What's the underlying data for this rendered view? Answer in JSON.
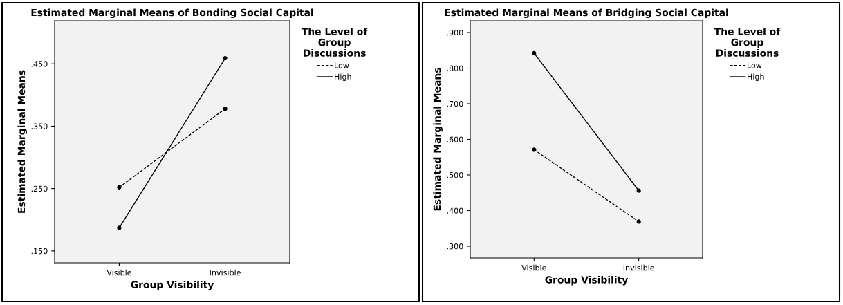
{
  "chart_data": [
    {
      "type": "line",
      "title": "Estimated Marginal Means of Bonding Social Capital",
      "xlabel": "Group Visibility",
      "ylabel": "Estimated Marginal Means",
      "legend_title": "The Level of\nGroup\nDiscussions",
      "categories": [
        "Visible",
        "Invisible"
      ],
      "series": [
        {
          "name": "Low",
          "color": "#000000",
          "line_style": "dashed",
          "values": [
            0.252,
            0.378
          ]
        },
        {
          "name": "High",
          "color": "#000000",
          "line_style": "solid",
          "values": [
            0.187,
            0.459
          ]
        }
      ],
      "ylim": [
        0.131,
        0.519
      ],
      "yticks": [
        {
          "value": 0.15,
          "label": ".150"
        },
        {
          "value": 0.25,
          "label": ".250"
        },
        {
          "value": 0.35,
          "label": ".350"
        },
        {
          "value": 0.45,
          "label": ".450"
        }
      ],
      "marker": "circle",
      "grid": false,
      "legend": "top right"
    },
    {
      "type": "line",
      "title": "Estimated Marginal Means of Bridging Social Capital",
      "xlabel": "Group Visibility",
      "ylabel": "Estimated Marginal Means",
      "legend_title": "The Level of\nGroup\nDiscussions",
      "categories": [
        "Visible",
        "Invisible"
      ],
      "series": [
        {
          "name": "Low",
          "color": "#000000",
          "line_style": "dashed",
          "values": [
            0.571,
            0.369
          ]
        },
        {
          "name": "High",
          "color": "#000000",
          "line_style": "solid",
          "values": [
            0.842,
            0.456
          ]
        }
      ],
      "ylim": [
        0.267,
        0.933
      ],
      "yticks": [
        {
          "value": 0.3,
          "label": ".300"
        },
        {
          "value": 0.4,
          "label": ".400"
        },
        {
          "value": 0.5,
          "label": ".500"
        },
        {
          "value": 0.6,
          "label": ".600"
        },
        {
          "value": 0.7,
          "label": ".700"
        },
        {
          "value": 0.8,
          "label": ".800"
        },
        {
          "value": 0.9,
          "label": ".900"
        }
      ],
      "marker": "circle",
      "grid": false,
      "legend": "top right"
    }
  ]
}
